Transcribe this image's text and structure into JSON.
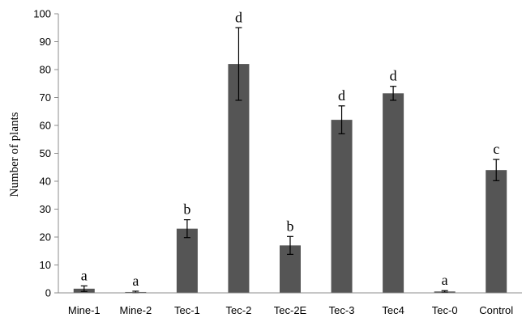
{
  "chart_data": {
    "type": "bar",
    "categories": [
      "Mine-1",
      "Mine-2",
      "Tec-1",
      "Tec-2",
      "Tec-2E",
      "Tec-3",
      "Tec4",
      "Tec-0",
      "Control"
    ],
    "values": [
      1.5,
      0.3,
      23,
      82,
      17,
      62,
      71.5,
      0.5,
      44
    ],
    "errors": [
      1.0,
      0.3,
      3.2,
      13,
      3.2,
      5,
      2.5,
      0.3,
      3.8
    ],
    "significance_labels": [
      "a",
      "a",
      "b",
      "d",
      "b",
      "d",
      "d",
      "a",
      "c"
    ],
    "title": "",
    "xlabel": "",
    "ylabel": "Number of plants",
    "ylim": [
      0,
      100
    ],
    "yticks": [
      0,
      10,
      20,
      30,
      40,
      50,
      60,
      70,
      80,
      90,
      100
    ],
    "grid": false,
    "legend": "none",
    "bar_color": "#555555"
  }
}
